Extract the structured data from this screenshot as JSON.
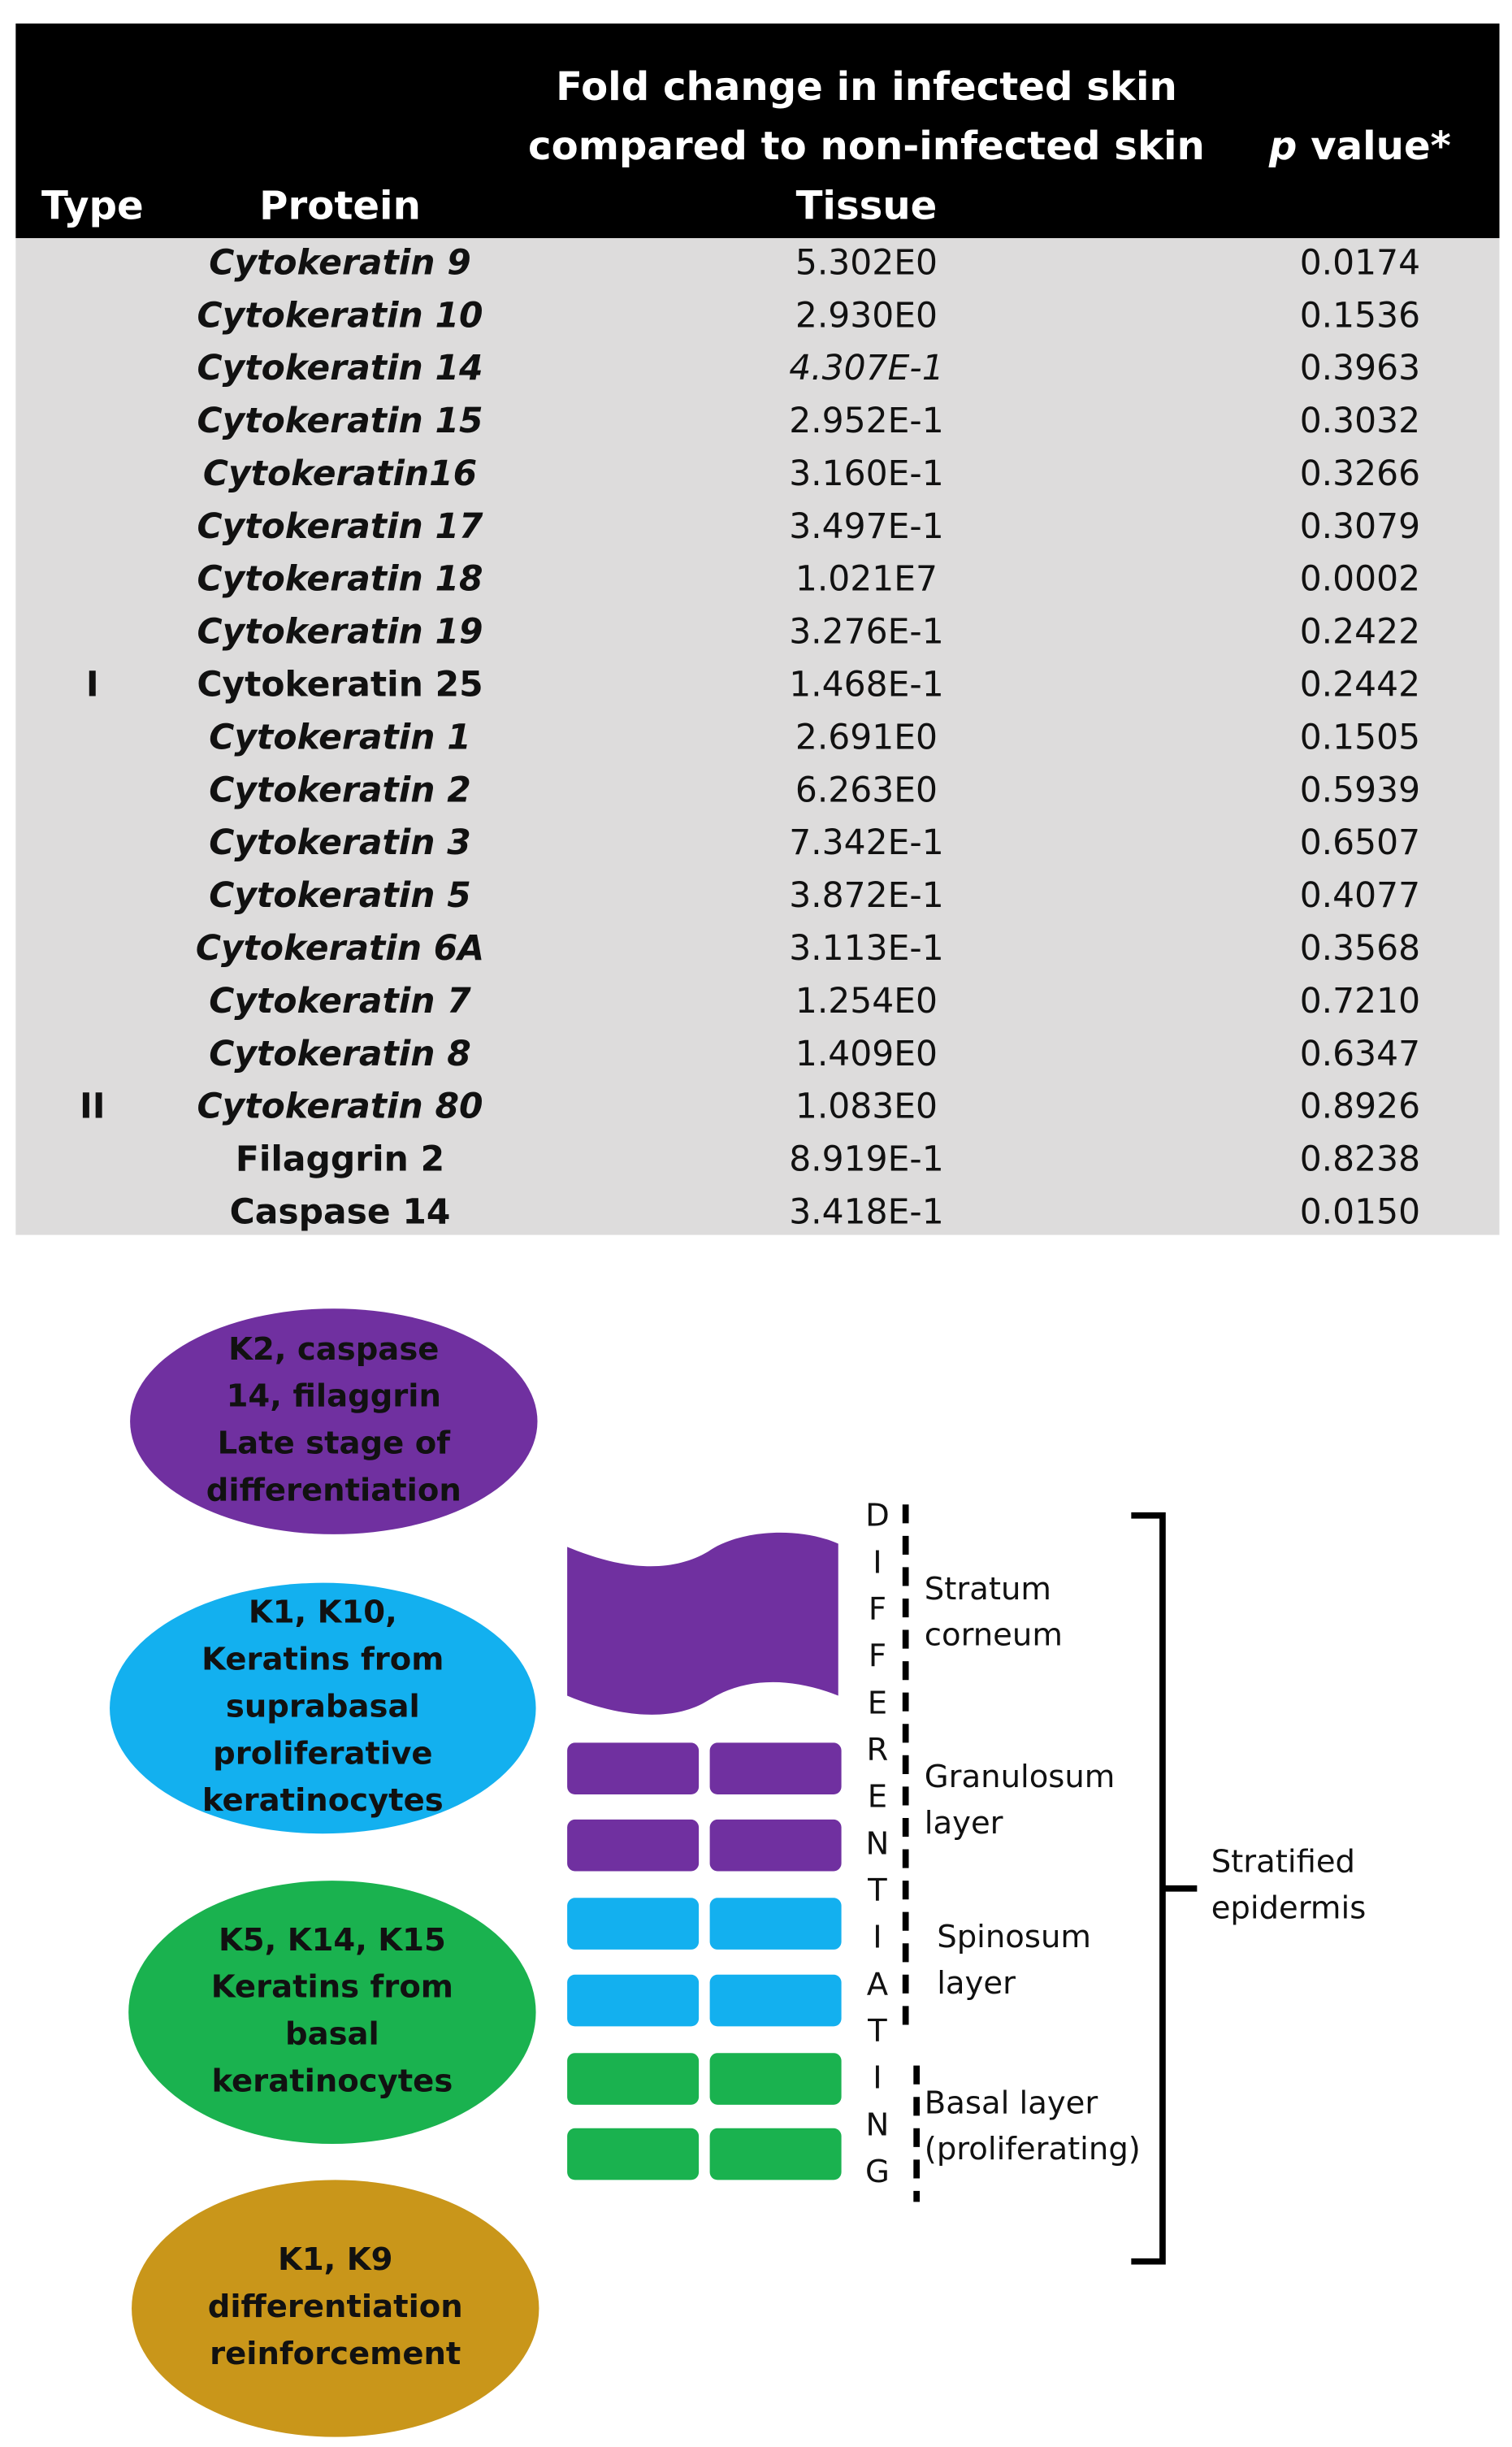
{
  "table": {
    "headers": {
      "type": "Type",
      "protein": "Protein",
      "fold_change": [
        "Fold change in infected skin",
        "compared to non-infected skin",
        "Tissue"
      ],
      "p_value": [
        "p",
        "value*"
      ]
    },
    "rows": [
      {
        "protein": "Cytokeratin 9",
        "fold_change": "5.302E0",
        "p_value": "0.0174"
      },
      {
        "protein": "Cytokeratin 10",
        "fold_change": "2.930E0",
        "p_value": "0.1536"
      },
      {
        "protein": "Cytokeratin 14",
        "fold_change": "4.307E-1",
        "p_value": "0.3963"
      },
      {
        "protein": "Cytokeratin 15",
        "fold_change": "2.952E-1",
        "p_value": "0.3032"
      },
      {
        "protein": "Cytokeratin16",
        "fold_change": "3.160E-1",
        "p_value": "0.3266"
      },
      {
        "protein": "Cytokeratin 17",
        "fold_change": "3.497E-1",
        "p_value": "0.3079"
      },
      {
        "protein": "Cytokeratin 18",
        "fold_change": "1.021E7",
        "p_value": "0.0002"
      },
      {
        "protein": "Cytokeratin 19",
        "fold_change": "3.276E-1",
        "p_value": "0.2422"
      },
      {
        "type": "I",
        "protein": "Cytokeratin 25",
        "fold_change": "1.468E-1",
        "p_value": "0.2442"
      },
      {
        "protein": "Cytokeratin 1",
        "fold_change": "2.691E0",
        "p_value": "0.1505"
      },
      {
        "protein": "Cytokeratin 2",
        "fold_change": "6.263E0",
        "p_value": "0.5939"
      },
      {
        "protein": "Cytokeratin 3",
        "fold_change": "7.342E-1",
        "p_value": "0.6507"
      },
      {
        "protein": "Cytokeratin 5",
        "fold_change": "3.872E-1",
        "p_value": "0.4077"
      },
      {
        "protein": "Cytokeratin 6A",
        "fold_change": "3.113E-1",
        "p_value": "0.3568"
      },
      {
        "protein": "Cytokeratin 7",
        "fold_change": "1.254E0",
        "p_value": "0.7210"
      },
      {
        "protein": "Cytokeratin 8",
        "fold_change": "1.409E0",
        "p_value": "0.6347"
      },
      {
        "type": "II",
        "protein": "Cytokeratin 80",
        "fold_change": "1.083E0",
        "p_value": "0.8926"
      },
      {
        "protein": "Filaggrin 2",
        "fold_change": "8.919E-1",
        "p_value": "0.8238"
      },
      {
        "protein": "Caspase 14",
        "fold_change": "3.418E-1",
        "p_value": "0.0150"
      }
    ]
  },
  "diagram": {
    "ellipses": [
      {
        "lines": [
          "K2, caspase",
          "14, filaggrin",
          "Late stage of",
          "differentiation"
        ]
      },
      {
        "lines": [
          "K1, K10,",
          "Keratins from",
          "suprabasal",
          "proliferative",
          "keratinocytes"
        ]
      },
      {
        "lines": [
          "K5, K14, K15",
          "Keratins from",
          "basal",
          "keratinocytes"
        ]
      },
      {
        "lines": [
          "K1, K9",
          "differentiation",
          "reinforcement"
        ]
      }
    ],
    "differentiating": "DIFFERENTIATING",
    "layers": [
      {
        "lines": [
          "Stratum",
          "corneum"
        ]
      },
      {
        "lines": [
          "Granulosum",
          "layer"
        ]
      },
      {
        "lines": [
          "Spinosum",
          "layer"
        ]
      },
      {
        "lines": [
          "Basal layer",
          "(proliferating)"
        ]
      }
    ],
    "epidermis": [
      "Stratified",
      "epidermis"
    ]
  }
}
